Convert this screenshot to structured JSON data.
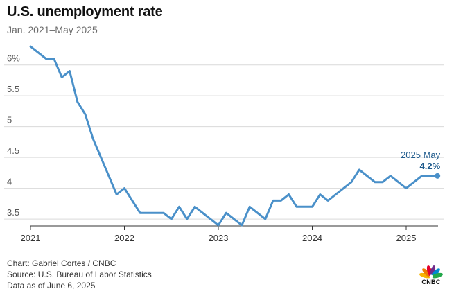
{
  "header": {
    "title": "U.S. unemployment rate",
    "subtitle": "Jan. 2021–May 2025"
  },
  "footer": {
    "credit": "Chart: Gabriel Cortes / CNBC",
    "source": "Source: U.S. Bureau of Labor Statistics",
    "asof": "Data as of June 6, 2025"
  },
  "logo": {
    "text": "CNBC",
    "icon": "peacock-logo-icon"
  },
  "colors": {
    "line": "#4a90c9",
    "grid": "#d9d9d9",
    "axis": "#333333",
    "annotation": "#1e5a8c",
    "logo_feathers": [
      "#f7b500",
      "#ef7d00",
      "#e4002b",
      "#6e2c8c",
      "#0089cf",
      "#23a84b"
    ]
  },
  "chart_data": {
    "type": "line",
    "title": "U.S. unemployment rate",
    "subtitle": "Jan. 2021–May 2025",
    "xlabel": "",
    "ylabel": "",
    "ylim": [
      3.4,
      6.4
    ],
    "xlim": [
      "2021-01",
      "2025-05"
    ],
    "yticks": [
      3.5,
      4,
      4.5,
      5,
      5.5,
      6
    ],
    "ytick_labels": [
      "3.5",
      "4",
      "4.5",
      "5",
      "5.5",
      "6%"
    ],
    "xticks": [
      "2021-01",
      "2022-01",
      "2023-01",
      "2024-01",
      "2025-01"
    ],
    "xtick_labels": [
      "2021",
      "2022",
      "2023",
      "2024",
      "2025"
    ],
    "grid": "horizontal",
    "legend": "none",
    "annotation": {
      "x": "2025-05",
      "y": 4.2,
      "label": "2025 May",
      "value_label": "4.2%"
    },
    "x": [
      "2021-01",
      "2021-02",
      "2021-03",
      "2021-04",
      "2021-05",
      "2021-06",
      "2021-07",
      "2021-08",
      "2021-09",
      "2021-10",
      "2021-11",
      "2021-12",
      "2022-01",
      "2022-02",
      "2022-03",
      "2022-04",
      "2022-05",
      "2022-06",
      "2022-07",
      "2022-08",
      "2022-09",
      "2022-10",
      "2022-11",
      "2022-12",
      "2023-01",
      "2023-02",
      "2023-03",
      "2023-04",
      "2023-05",
      "2023-06",
      "2023-07",
      "2023-08",
      "2023-09",
      "2023-10",
      "2023-11",
      "2023-12",
      "2024-01",
      "2024-02",
      "2024-03",
      "2024-04",
      "2024-05",
      "2024-06",
      "2024-07",
      "2024-08",
      "2024-09",
      "2024-10",
      "2024-11",
      "2024-12",
      "2025-01",
      "2025-02",
      "2025-03",
      "2025-04",
      "2025-05"
    ],
    "series": [
      {
        "values": [
          6.3,
          6.2,
          6.1,
          6.1,
          5.8,
          5.9,
          5.4,
          5.2,
          4.8,
          4.5,
          4.2,
          3.9,
          4.0,
          3.8,
          3.6,
          3.6,
          3.6,
          3.6,
          3.5,
          3.7,
          3.5,
          3.7,
          3.6,
          3.5,
          3.4,
          3.6,
          3.5,
          3.4,
          3.7,
          3.6,
          3.5,
          3.8,
          3.8,
          3.9,
          3.7,
          3.7,
          3.7,
          3.9,
          3.8,
          3.9,
          4.0,
          4.1,
          4.3,
          4.2,
          4.1,
          4.1,
          4.2,
          4.1,
          4.0,
          4.1,
          4.2,
          4.2,
          4.2
        ]
      }
    ]
  }
}
